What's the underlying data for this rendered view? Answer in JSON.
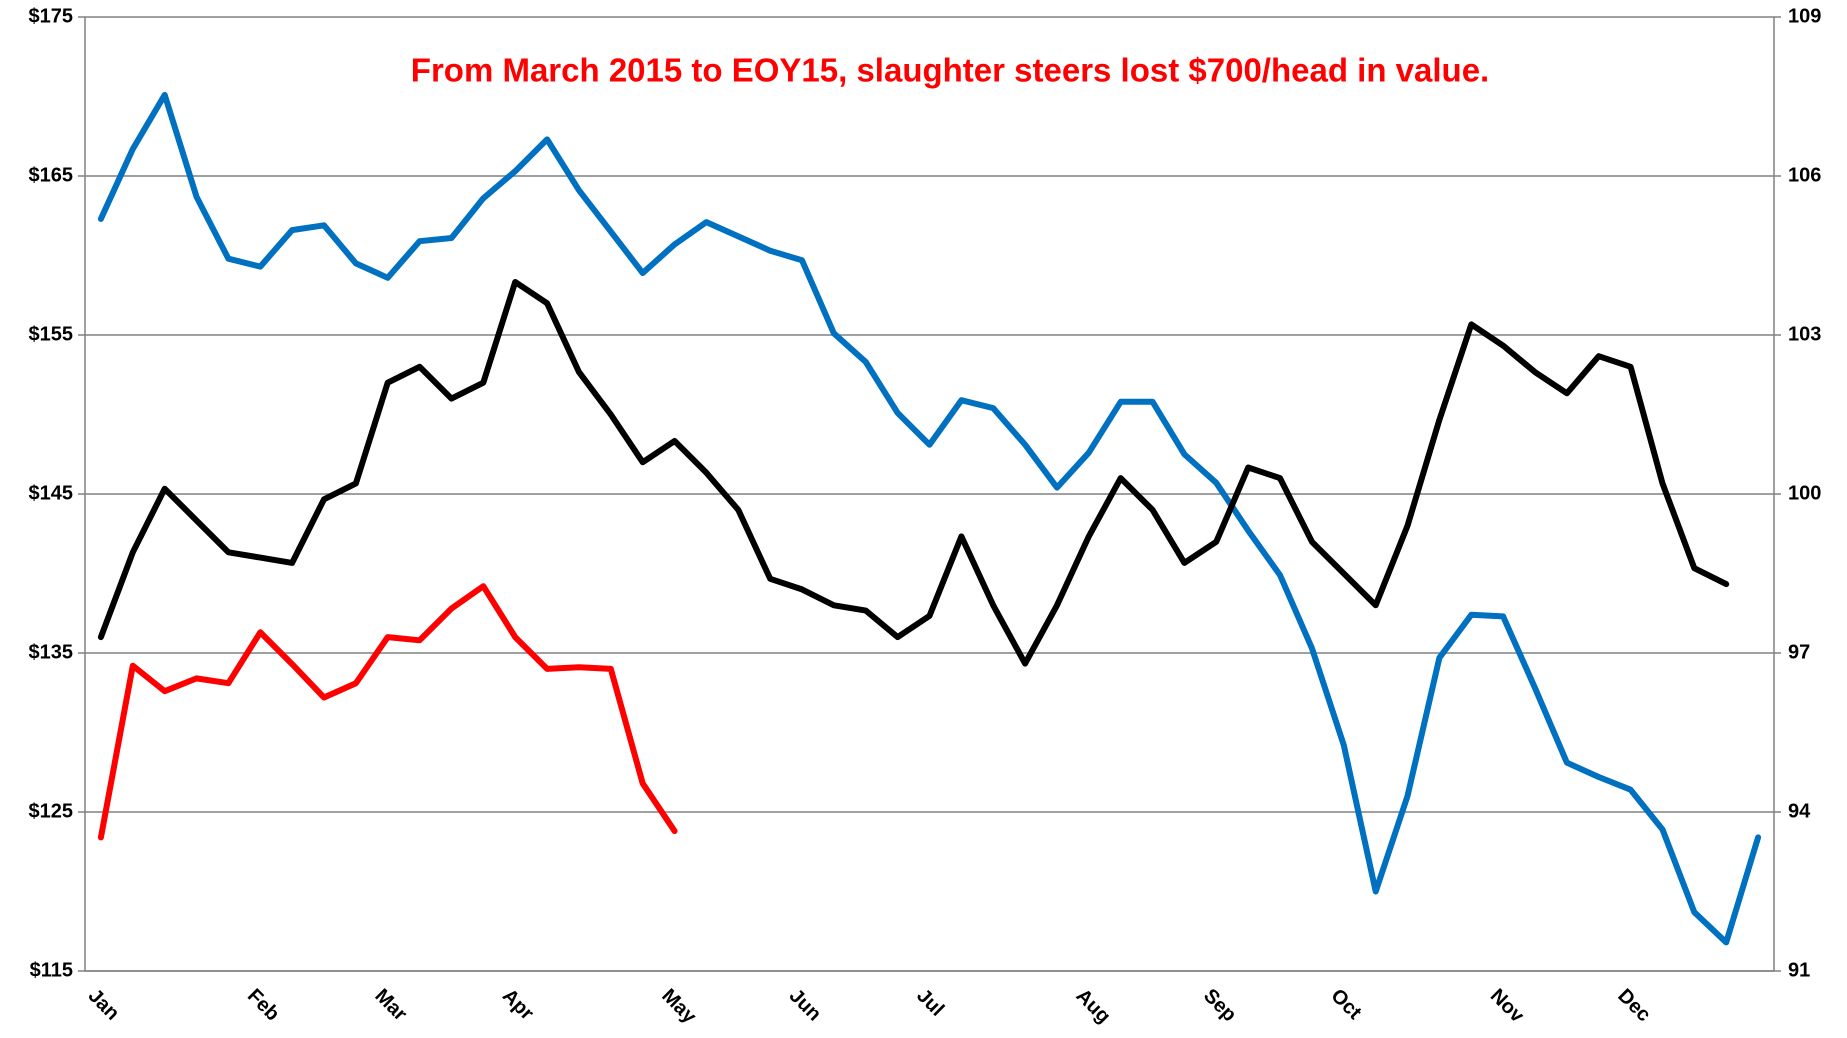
{
  "chart_data": {
    "type": "line",
    "title": "From March 2015  to EOY15, slaughter steers lost $700/head in value.",
    "categories": [
      "Jan",
      null,
      null,
      null,
      null,
      "Feb",
      null,
      null,
      null,
      "Mar",
      null,
      null,
      null,
      "Apr",
      null,
      null,
      null,
      null,
      "May",
      null,
      null,
      null,
      "Jun",
      null,
      null,
      null,
      "Jul",
      null,
      null,
      null,
      null,
      "Aug",
      null,
      null,
      null,
      "Sep",
      null,
      null,
      null,
      "Oct",
      null,
      null,
      null,
      null,
      "Nov",
      null,
      null,
      null,
      "Dec",
      null,
      null,
      null,
      null
    ],
    "series": [
      {
        "color": "#0070c0",
        "values": [
          162.3,
          166.7,
          170.1,
          163.7,
          159.8,
          159.3,
          161.6,
          161.9,
          159.5,
          158.6,
          160.9,
          161.1,
          163.6,
          165.3,
          167.3,
          164.1,
          161.5,
          158.9,
          160.7,
          162.1,
          161.2,
          160.3,
          159.7,
          155.1,
          153.3,
          150.1,
          148.1,
          150.9,
          150.4,
          148.1,
          145.4,
          147.6,
          150.8,
          150.8,
          147.5,
          145.7,
          142.7,
          139.9,
          135.3,
          129.2,
          120.0,
          126.0,
          134.7,
          137.4,
          137.3,
          132.8,
          128.1,
          127.2,
          126.4,
          123.9,
          118.7,
          116.8,
          123.4
        ]
      },
      {
        "color": "#000000",
        "axis": "y2",
        "values": [
          97.3,
          98.9,
          100.1,
          99.5,
          98.9,
          98.8,
          98.7,
          99.9,
          100.2,
          102.1,
          102.4,
          101.8,
          102.1,
          104.0,
          103.6,
          102.3,
          101.5,
          100.6,
          101.0,
          100.4,
          99.7,
          98.4,
          98.2,
          97.9,
          97.8,
          97.3,
          97.7,
          99.2,
          97.9,
          96.8,
          97.9,
          99.2,
          100.3,
          99.7,
          98.7,
          99.1,
          100.5,
          100.3,
          99.1,
          98.5,
          97.9,
          99.4,
          101.4,
          103.2,
          102.8,
          102.3,
          101.9,
          102.6,
          102.4,
          100.2,
          98.6,
          98.3,
          null
        ]
      },
      {
        "color": "#ff0000",
        "values": [
          123.4,
          134.2,
          132.6,
          133.4,
          133.1,
          136.3,
          134.3,
          132.2,
          133.1,
          136.0,
          135.8,
          137.8,
          139.2,
          136.0,
          134.0,
          134.1,
          134.0,
          126.8,
          123.8,
          null,
          null,
          null,
          null,
          null,
          null,
          null,
          null,
          null,
          null,
          null,
          null,
          null,
          null,
          null,
          null,
          null,
          null,
          null,
          null,
          null,
          null,
          null,
          null,
          null,
          null,
          null,
          null,
          null,
          null,
          null,
          null,
          null,
          null
        ]
      }
    ],
    "ylim": [
      115,
      175
    ],
    "yticks": [
      {
        "value": 115,
        "label": "$115"
      },
      {
        "value": 125,
        "label": "$125"
      },
      {
        "value": 135,
        "label": "$135"
      },
      {
        "value": 145,
        "label": "$145"
      },
      {
        "value": 155,
        "label": "$155"
      },
      {
        "value": 165,
        "label": "$165"
      },
      {
        "value": 175,
        "label": "$175"
      }
    ],
    "y2lim": [
      91,
      109
    ],
    "y2ticks": [
      91,
      94,
      97,
      100,
      103,
      106,
      109
    ],
    "grid": true
  }
}
